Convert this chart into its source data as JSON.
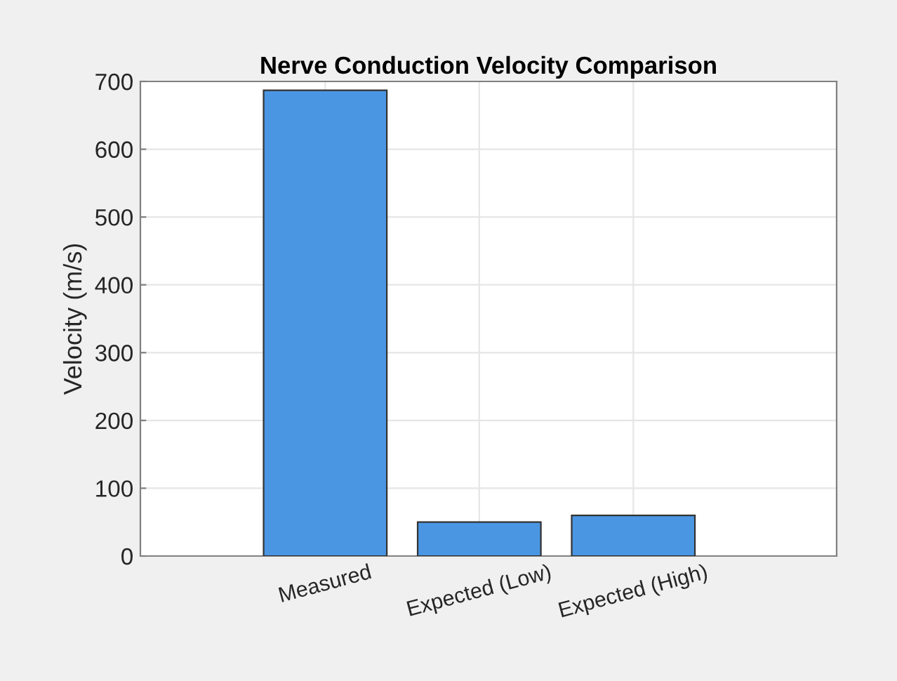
{
  "chart_data": {
    "type": "bar",
    "title": "Nerve Conduction Velocity Comparison",
    "ylabel": "Velocity (m/s)",
    "categories": [
      "Measured",
      "Expected (Low)",
      "Expected (High)"
    ],
    "values": [
      687,
      50,
      60
    ],
    "color": "#4a96e3",
    "ylim": [
      0,
      700
    ],
    "yticks": [
      0,
      100,
      200,
      300,
      400,
      500,
      600,
      700
    ],
    "grid": true
  }
}
